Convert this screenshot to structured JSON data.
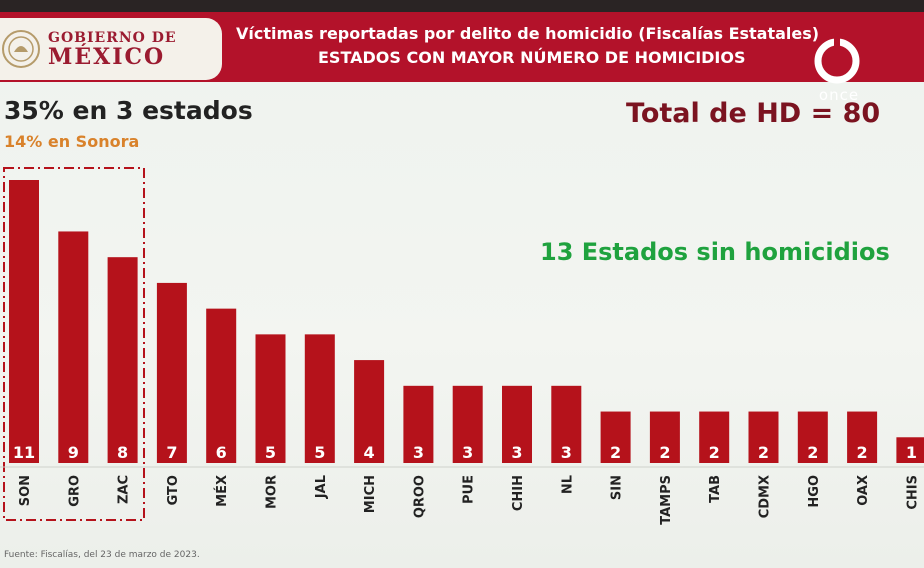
{
  "header": {
    "gob_line1": "GOBIERNO DE",
    "gob_line2": "MÉXICO",
    "title_line1": "Víctimas reportadas por delito de homicidio (Fiscalías Estatales)",
    "title_line2": "ESTADOS CON MAYOR NÚMERO DE HOMICIDIOS",
    "channel_logo_text": "once"
  },
  "headline": "35% en 3 estados",
  "subheadline": "14% en Sonora",
  "total_label": "Total de HD = 80",
  "callout": "13 Estados sin homicidios",
  "source": "Fuente: Fiscalías, del 23 de marzo de 2023.",
  "colors": {
    "bar": "#b5121b",
    "header": "#b3122a",
    "green": "#1fa23e",
    "orange": "#d9822b"
  },
  "chart_data": {
    "type": "bar",
    "categories": [
      "SON",
      "GRO",
      "ZAC",
      "GTO",
      "MÉX",
      "MOR",
      "JAL",
      "MICH",
      "QROO",
      "PUE",
      "CHIH",
      "NL",
      "SIN",
      "TAMPS",
      "TAB",
      "CDMX",
      "HGO",
      "OAX",
      "CHIS"
    ],
    "values": [
      11,
      9,
      8,
      7,
      6,
      5,
      5,
      4,
      3,
      3,
      3,
      3,
      2,
      2,
      2,
      2,
      2,
      2,
      1
    ],
    "ylim": [
      0,
      11
    ],
    "highlight_categories": [
      "SON",
      "GRO",
      "ZAC"
    ],
    "grid": false,
    "legend": "none"
  }
}
